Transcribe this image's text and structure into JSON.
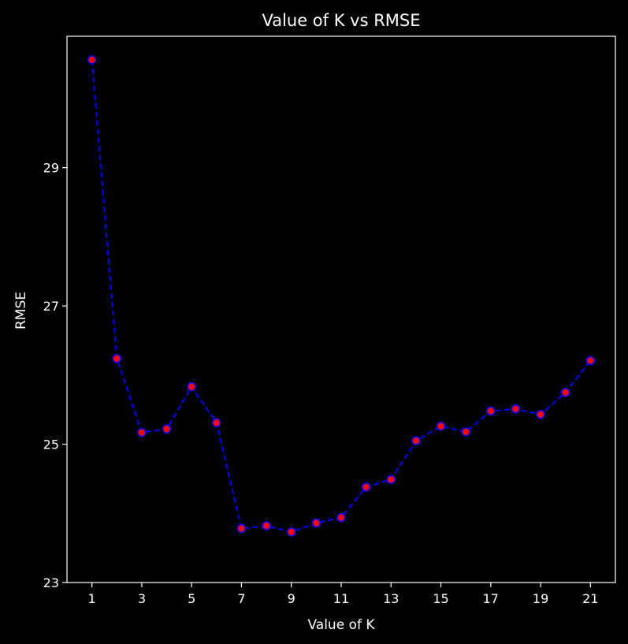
{
  "chart_data": {
    "type": "line",
    "title": "Value of K vs RMSE",
    "xlabel": "Value of K",
    "ylabel": "RMSE",
    "x": [
      1,
      2,
      3,
      4,
      5,
      6,
      7,
      8,
      9,
      10,
      11,
      12,
      13,
      14,
      15,
      16,
      17,
      18,
      19,
      20,
      21
    ],
    "series": [
      {
        "values": [
          30.56,
          26.24,
          25.17,
          25.22,
          25.83,
          25.31,
          23.78,
          23.82,
          23.73,
          23.86,
          23.94,
          24.38,
          24.49,
          25.05,
          25.26,
          25.18,
          25.48,
          25.51,
          25.43,
          25.75,
          26.21
        ],
        "line_color": "#0000ff",
        "line_style": "dashed",
        "marker_face": "#ff0000",
        "marker_edge": "#0000ff"
      }
    ],
    "xticks": [
      1,
      3,
      5,
      7,
      9,
      11,
      13,
      15,
      17,
      19,
      21
    ],
    "yticks": [
      23,
      25,
      27,
      29
    ],
    "xlim": [
      0,
      22
    ],
    "ylim": [
      23,
      30.9
    ],
    "grid": false,
    "legend": "none",
    "background": "#000000",
    "foreground": "#ffffff"
  }
}
